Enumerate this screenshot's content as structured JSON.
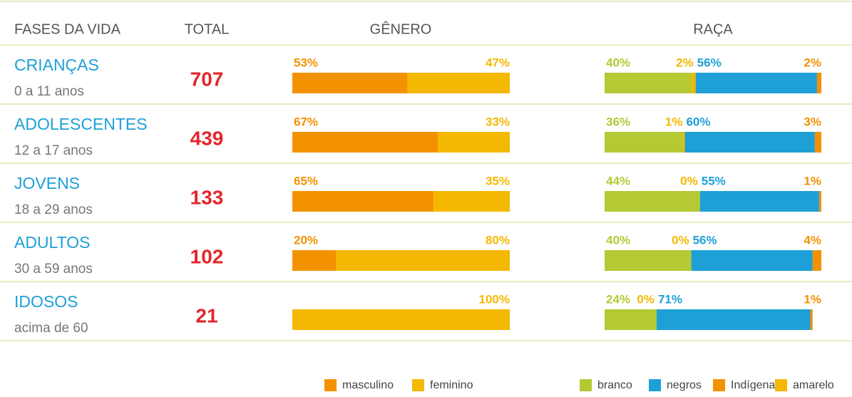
{
  "chart_data": {
    "type": "stacked-bar-table",
    "columns": [
      "FASES DA VIDA",
      "TOTAL",
      "GÊNERO",
      "RAÇA"
    ],
    "gender_series": [
      {
        "name": "masculino",
        "color": "#f39200"
      },
      {
        "name": "feminino",
        "color": "#f5b800"
      }
    ],
    "race_series": [
      {
        "name": "branco",
        "color": "#b5c935"
      },
      {
        "name": "negros",
        "color": "#1ea0d7"
      },
      {
        "name": "Indígena",
        "color": "#f39200"
      },
      {
        "name": "amarelo",
        "color": "#f5b800"
      }
    ],
    "rows": [
      {
        "phase": "CRIANÇAS",
        "ages": "0 a 11 anos",
        "total": 707,
        "gender": [
          53,
          47
        ],
        "gender_labels": [
          "53%",
          "47%"
        ],
        "race": [
          40,
          56,
          2,
          2
        ],
        "race_labels": [
          "40%",
          "56%",
          "2%",
          "2%"
        ]
      },
      {
        "phase": "ADOLESCENTES",
        "ages": "12 a 17 anos",
        "total": 439,
        "gender": [
          67,
          33
        ],
        "gender_labels": [
          "67%",
          "33%"
        ],
        "race": [
          36,
          60,
          3,
          1
        ],
        "race_labels": [
          "36%",
          "60%",
          "3%",
          "1%"
        ]
      },
      {
        "phase": "JOVENS",
        "ages": "18 a 29 anos",
        "total": 133,
        "gender": [
          65,
          35
        ],
        "gender_labels": [
          "65%",
          "35%"
        ],
        "race": [
          44,
          55,
          1,
          0
        ],
        "race_labels": [
          "44%",
          "55%",
          "1%",
          "0%"
        ]
      },
      {
        "phase": "ADULTOS",
        "ages": "30 a 59 anos",
        "total": 102,
        "gender": [
          20,
          80
        ],
        "gender_labels": [
          "20%",
          "80%"
        ],
        "race": [
          40,
          56,
          4,
          0
        ],
        "race_labels": [
          "40%",
          "56%",
          "4%",
          "0%"
        ]
      },
      {
        "phase": "IDOSOS",
        "ages": "acima de 60",
        "total": 21,
        "gender": [
          0,
          100
        ],
        "gender_labels": [
          null,
          "100%"
        ],
        "race": [
          24,
          71,
          1,
          0
        ],
        "race_labels": [
          "24%",
          "71%",
          "1%",
          "0%"
        ]
      }
    ]
  }
}
